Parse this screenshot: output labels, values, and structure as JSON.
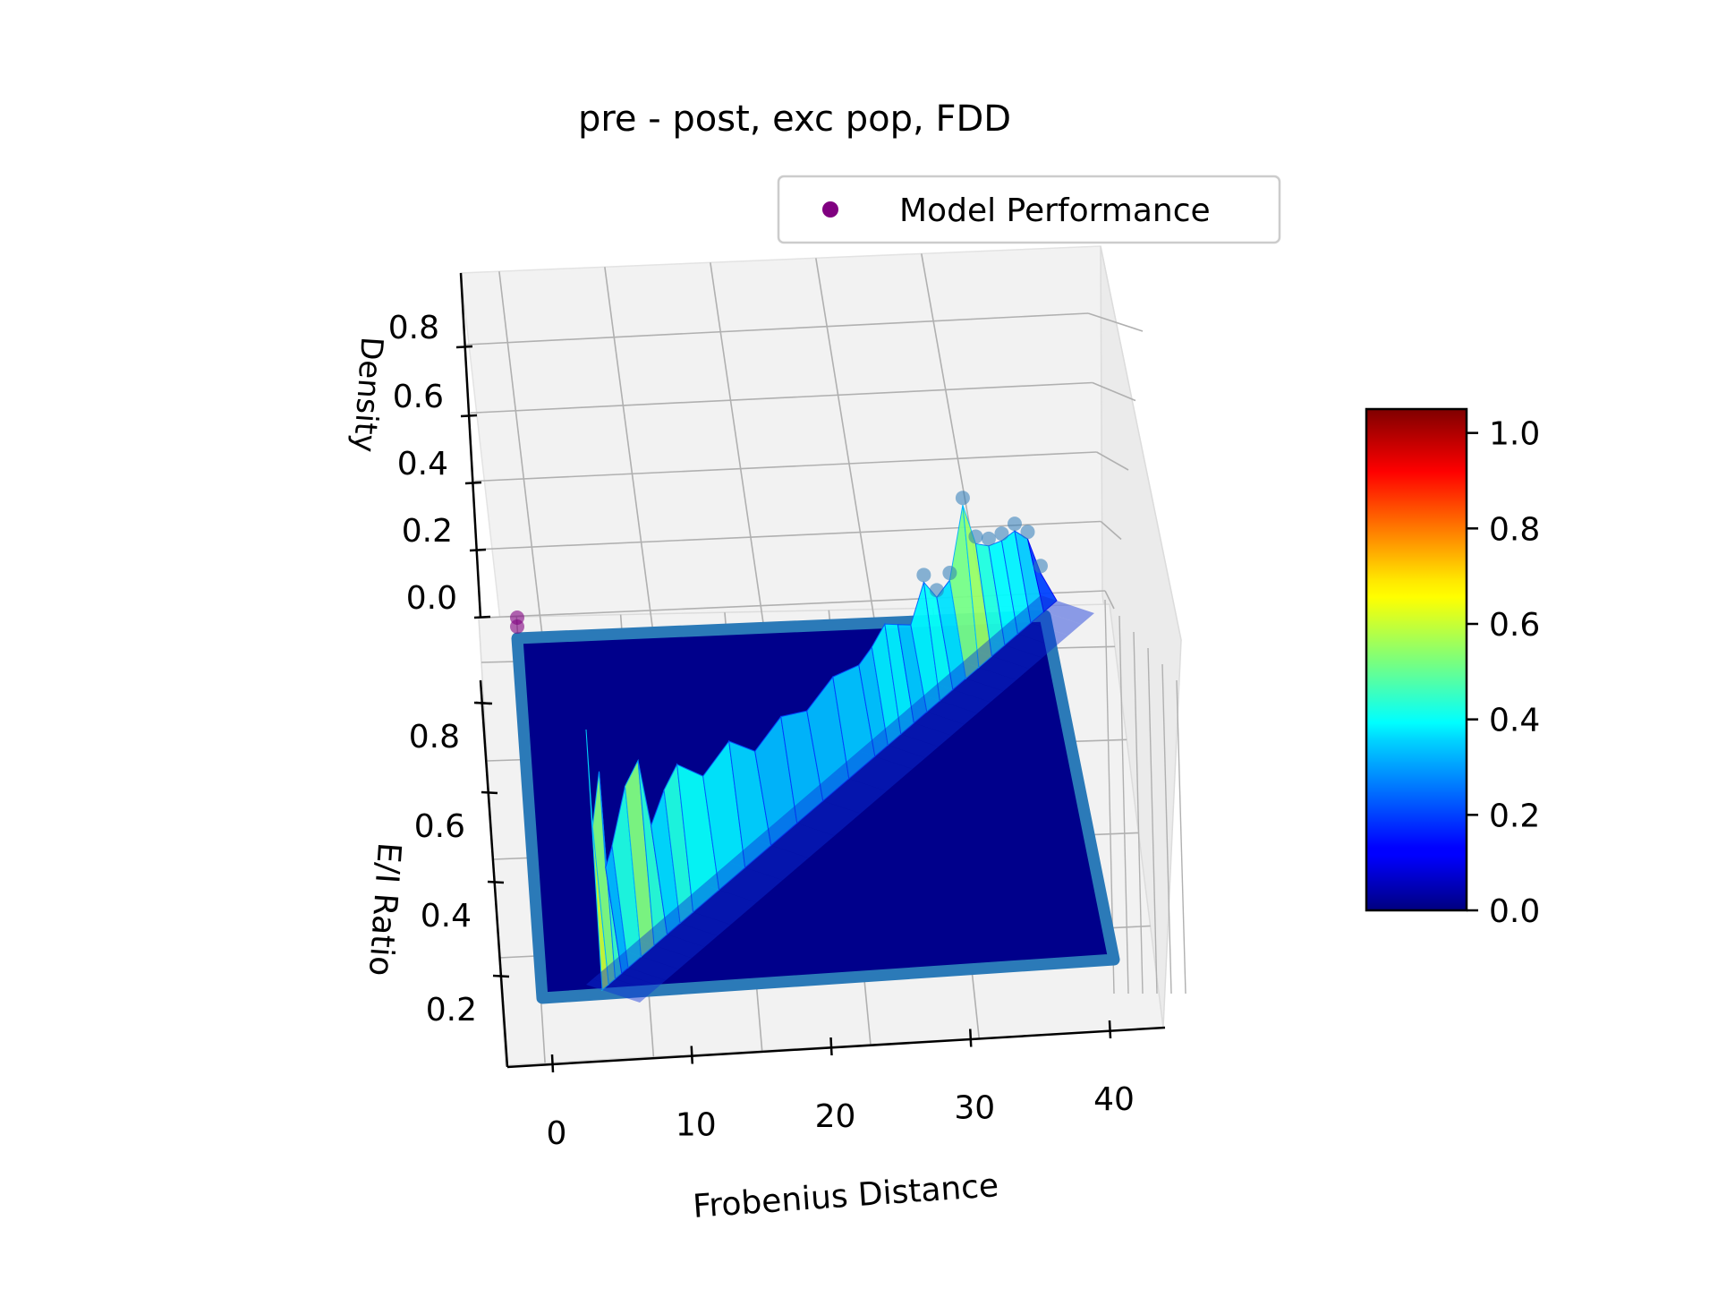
{
  "chart_data": {
    "type": "surface3d",
    "title": "pre - post, exc pop, FDD",
    "xlabel": "Frobenius Distance",
    "ylabel": "E/I Ratio",
    "zlabel": "Density",
    "x_ticks": [
      "0",
      "10",
      "20",
      "30",
      "40"
    ],
    "y_ticks": [
      "0.2",
      "0.4",
      "0.6",
      "0.8"
    ],
    "z_ticks": [
      "0.0",
      "0.2",
      "0.4",
      "0.6",
      "0.8"
    ],
    "xlim": [
      -2,
      43
    ],
    "ylim": [
      0.1,
      1.0
    ],
    "zlim": [
      0.0,
      1.0
    ],
    "grid": true,
    "legend": {
      "position": "top-right",
      "entries": [
        {
          "label": "Model Performance",
          "color": "#800080",
          "marker": "circle"
        }
      ]
    },
    "colorbar": {
      "colormap": "jet",
      "range": [
        0.0,
        1.05
      ],
      "ticks": [
        "0.0",
        "0.2",
        "0.4",
        "0.6",
        "0.8",
        "1.0"
      ]
    },
    "ridge_profile": {
      "description_note": "",
      "x": [
        3.0,
        3.5,
        4.0,
        4.5,
        5.0,
        6.0,
        7.0,
        8.0,
        9.0,
        10.0,
        12.0,
        14.0,
        16.0,
        18.0,
        20.0,
        22.0,
        24.0,
        25.0,
        26.0,
        27.0,
        28.0,
        29.0,
        30.0,
        31.0,
        32.0,
        33.0,
        34.0,
        35.0,
        36.0,
        37.0,
        38.0
      ],
      "peak_density": [
        0.75,
        0.45,
        0.6,
        0.3,
        0.35,
        0.5,
        0.55,
        0.32,
        0.4,
        0.45,
        0.35,
        0.4,
        0.3,
        0.35,
        0.3,
        0.35,
        0.32,
        0.35,
        0.4,
        0.36,
        0.32,
        0.45,
        0.35,
        0.38,
        0.65,
        0.45,
        0.4,
        0.38,
        0.38,
        0.3,
        0.1
      ]
    },
    "model_performance_point": {
      "x": -2,
      "y": 1.0,
      "z": 0.0
    }
  }
}
